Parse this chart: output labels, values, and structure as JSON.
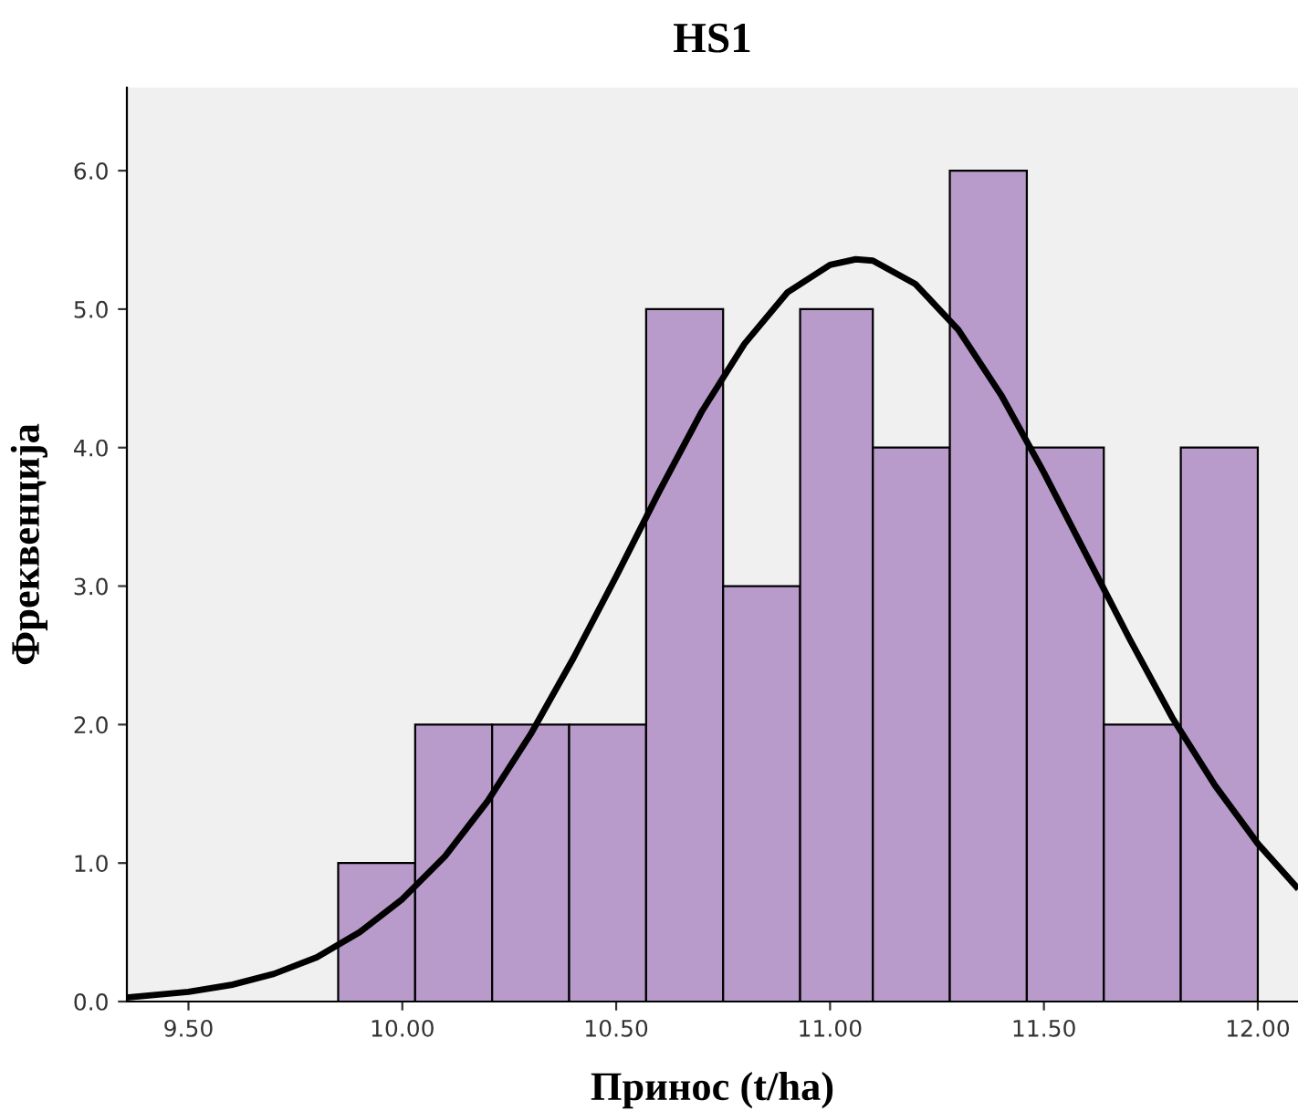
{
  "chart_data": {
    "type": "histogram",
    "title": "HS1",
    "xlabel": "Принос (t/ha)",
    "ylabel": "Фреквенција",
    "bins": [
      9.85,
      10.03,
      10.21,
      10.39,
      10.57,
      10.75,
      10.93,
      11.1,
      11.28,
      11.46,
      11.64,
      11.82,
      12.0
    ],
    "values": [
      1,
      2,
      2,
      2,
      5,
      3,
      5,
      4,
      6,
      4,
      2,
      4
    ],
    "color": "#b89bca",
    "series": [
      {
        "type": "line",
        "color": "#000000",
        "x": [
          9.36,
          9.5,
          9.6,
          9.7,
          9.8,
          9.9,
          10.0,
          10.1,
          10.2,
          10.3,
          10.4,
          10.5,
          10.6,
          10.7,
          10.8,
          10.9,
          11.0,
          11.06,
          11.1,
          11.2,
          11.3,
          11.4,
          11.5,
          11.6,
          11.7,
          11.8,
          11.9,
          12.0,
          12.09
        ],
        "values": [
          0.03,
          0.07,
          0.12,
          0.2,
          0.32,
          0.5,
          0.74,
          1.05,
          1.45,
          1.93,
          2.48,
          3.07,
          3.68,
          4.26,
          4.75,
          5.12,
          5.32,
          5.36,
          5.35,
          5.18,
          4.85,
          4.38,
          3.82,
          3.22,
          2.62,
          2.05,
          1.56,
          1.14,
          0.83
        ]
      }
    ],
    "xlim": [
      9.356,
      12.094
    ],
    "ylim": [
      0,
      6.6
    ],
    "xticks": [
      {
        "value": 9.5,
        "label": "9.50"
      },
      {
        "value": 10.0,
        "label": "10.00"
      },
      {
        "value": 10.5,
        "label": "10.50"
      },
      {
        "value": 11.0,
        "label": "11.00"
      },
      {
        "value": 11.5,
        "label": "11.50"
      },
      {
        "value": 12.0,
        "label": "12.00"
      }
    ],
    "yticks": [
      {
        "value": 0,
        "label": "0.0"
      },
      {
        "value": 1,
        "label": "1.0"
      },
      {
        "value": 2,
        "label": "2.0"
      },
      {
        "value": 3,
        "label": "3.0"
      },
      {
        "value": 4,
        "label": "4.0"
      },
      {
        "value": 5,
        "label": "5.0"
      },
      {
        "value": 6,
        "label": "6.0"
      }
    ],
    "grid": false,
    "legend": false,
    "marker": "none",
    "line_style": "solid"
  }
}
